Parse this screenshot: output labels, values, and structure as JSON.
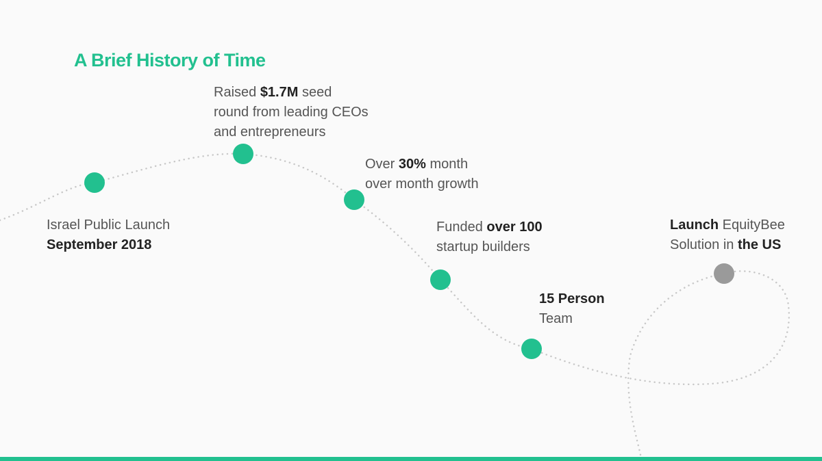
{
  "title": "A Brief History of Time",
  "milestones": [
    {
      "color": "#22c08f",
      "lines": [
        [
          {
            "text": "Israel Public Launch",
            "bold": false
          }
        ],
        [
          {
            "text": "September 2018",
            "bold": true
          }
        ]
      ]
    },
    {
      "color": "#22c08f",
      "lines": [
        [
          {
            "text": "Raised ",
            "bold": false
          },
          {
            "text": "$1.7M",
            "bold": true
          },
          {
            "text": " seed",
            "bold": false
          }
        ],
        [
          {
            "text": "round from leading CEOs",
            "bold": false
          }
        ],
        [
          {
            "text": "and entrepreneurs",
            "bold": false
          }
        ]
      ]
    },
    {
      "color": "#22c08f",
      "lines": [
        [
          {
            "text": "Over ",
            "bold": false
          },
          {
            "text": "30%",
            "bold": true
          },
          {
            "text": " month",
            "bold": false
          }
        ],
        [
          {
            "text": "over month growth",
            "bold": false
          }
        ]
      ]
    },
    {
      "color": "#22c08f",
      "lines": [
        [
          {
            "text": "Funded ",
            "bold": false
          },
          {
            "text": "over 100",
            "bold": true
          }
        ],
        [
          {
            "text": "startup builders",
            "bold": false
          }
        ]
      ]
    },
    {
      "color": "#22c08f",
      "lines": [
        [
          {
            "text": "15 Person",
            "bold": true
          }
        ],
        [
          {
            "text": "Team",
            "bold": false
          }
        ]
      ]
    },
    {
      "color": "#9a9a9a",
      "lines": [
        [
          {
            "text": "Launch",
            "bold": true
          },
          {
            "text": " EquityBee",
            "bold": false
          }
        ],
        [
          {
            "text": "Solution in ",
            "bold": false
          },
          {
            "text": "the US",
            "bold": true
          }
        ]
      ]
    }
  ]
}
